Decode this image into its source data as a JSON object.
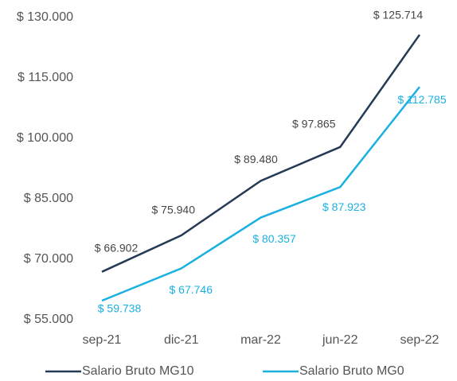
{
  "chart_data": {
    "type": "line",
    "categories": [
      "sep-21",
      "dic-21",
      "mar-22",
      "jun-22",
      "sep-22"
    ],
    "series": [
      {
        "name": "Salario Bruto MG10",
        "color": "#253a55",
        "values": [
          66902,
          75940,
          89480,
          97865,
          125714
        ],
        "value_labels": [
          "$ 66.902",
          "$ 75.940",
          "$ 89.480",
          "$ 97.865",
          "$ 125.714"
        ]
      },
      {
        "name": "Salario Bruto MG0",
        "color": "#1ab0e0",
        "values": [
          59738,
          67746,
          80357,
          87923,
          112785
        ],
        "value_labels": [
          "$ 59.738",
          "$ 67.746",
          "$ 80.357",
          "$ 87.923",
          "$ 112.785"
        ]
      }
    ],
    "ylim": [
      55000,
      130000
    ],
    "yticks": [
      {
        "value": 55000,
        "label": "$ 55.000"
      },
      {
        "value": 70000,
        "label": "$ 70.000"
      },
      {
        "value": 85000,
        "label": "$ 85.000"
      },
      {
        "value": 100000,
        "label": "$ 100.000"
      },
      {
        "value": 115000,
        "label": "$ 115.000"
      },
      {
        "value": 130000,
        "label": "$ 130.000"
      }
    ],
    "grid": false
  }
}
